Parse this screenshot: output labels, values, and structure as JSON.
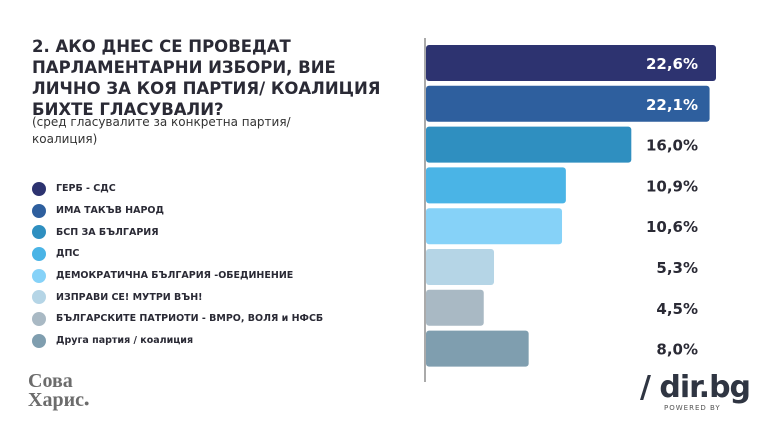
{
  "chart_data": {
    "type": "bar",
    "orientation": "horizontal",
    "title": "2. АКО ДНЕС СЕ ПРОВЕДАТ ПАРЛАМЕНТАРНИ ИЗБОРИ, ВИЕ ЛИЧНО ЗА КОЯ ПАРТИЯ/ КОАЛИЦИЯ БИХТЕ ГЛАСУВАЛИ?",
    "subtitle": "(сред гласувалите за конкретна партия/коалиция)",
    "categories": [
      "ГЕРБ - СДС",
      "ИМА ТАКЪВ НАРОД",
      "БСП ЗА БЪЛГАРИЯ",
      "ДПС",
      "ДЕМОКРАТИЧНА БЪЛГАРИЯ -ОБЕДИНЕНИЕ",
      "ИЗПРАВИ СЕ! МУТРИ ВЪН!",
      "БЪЛГАРСКИТЕ ПАТРИОТИ - ВМРО, ВОЛЯ и НФСБ",
      "Друга партия / коалиция"
    ],
    "values": [
      22.6,
      22.1,
      16.0,
      10.9,
      10.6,
      5.3,
      4.5,
      8.0
    ],
    "labels": [
      "22,6%",
      "22,1%",
      "16,0%",
      "10,9%",
      "10,6%",
      "5,3%",
      "4,5%",
      "8,0%"
    ],
    "colors": [
      "#2d3370",
      "#2e5f9e",
      "#2f8fc0",
      "#4ab4e6",
      "#86d2f8",
      "#b5d5e6",
      "#a9b9c4",
      "#7f9eaf"
    ],
    "legend": "left"
  },
  "logos": {
    "left": "Сова Харис",
    "right": "/ dir.bg",
    "right_sub": "POWERED BY"
  }
}
